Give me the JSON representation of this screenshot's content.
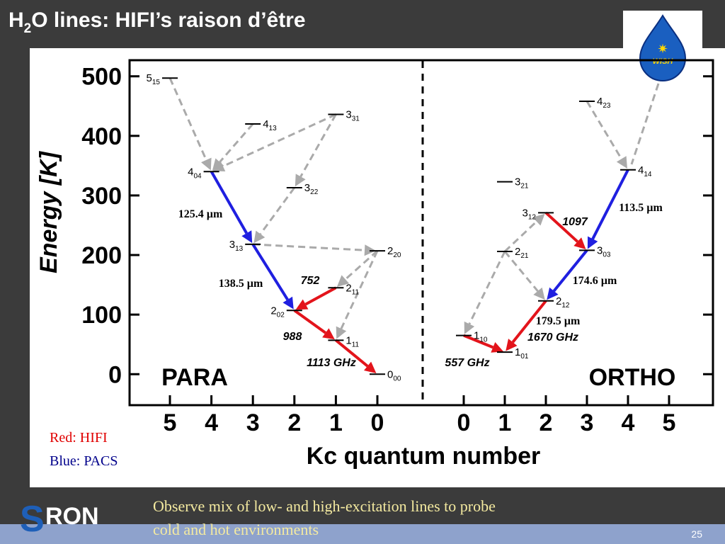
{
  "slide": {
    "title": {
      "parts": [
        "H",
        "2",
        "O lines: HIFI’s raison d’être"
      ]
    },
    "logo": "WISH",
    "footer_logo": {
      "initial": "S",
      "rest": "RON"
    },
    "caption": [
      "Observe mix of low- and high-excitation lines to probe",
      "cold and hot environments"
    ],
    "page_number": "25",
    "legend": [
      "Red: HIFI",
      "Blue: PACS"
    ]
  },
  "figure": {
    "y_label": "Energy [K]",
    "x_label": "Kc quantum number",
    "ylim": [
      -52,
      527
    ],
    "yticks": [
      0,
      100,
      200,
      300,
      400,
      500
    ],
    "panels": [
      {
        "label": "PARA",
        "xticks": [
          5,
          4,
          3,
          2,
          1,
          0
        ],
        "levels": [
          {
            "name": "5",
            "sub": "15",
            "kc": 5,
            "energy": 497
          },
          {
            "name": "4",
            "sub": "13",
            "kc": 3,
            "energy": 420
          },
          {
            "name": "3",
            "sub": "31",
            "kc": 1,
            "energy": 436
          },
          {
            "name": "4",
            "sub": "04",
            "kc": 4,
            "energy": 340
          },
          {
            "name": "3",
            "sub": "22",
            "kc": 2,
            "energy": 313
          },
          {
            "name": "3",
            "sub": "13",
            "kc": 3,
            "energy": 218
          },
          {
            "name": "2",
            "sub": "20",
            "kc": 0,
            "energy": 207
          },
          {
            "name": "2",
            "sub": "11",
            "kc": 1,
            "energy": 145
          },
          {
            "name": "2",
            "sub": "02",
            "kc": 2,
            "energy": 107
          },
          {
            "name": "1",
            "sub": "11",
            "kc": 1,
            "energy": 57
          },
          {
            "name": "0",
            "sub": "00",
            "kc": 0,
            "energy": 0
          }
        ],
        "transitions": [
          {
            "from": 0,
            "to": 3,
            "color": "#aaaaaa",
            "line": "dashed"
          },
          {
            "from": 1,
            "to": 3,
            "color": "#aaaaaa",
            "line": "dashed"
          },
          {
            "from": 2,
            "to": 3,
            "color": "#aaaaaa",
            "line": "dashed"
          },
          {
            "from": 2,
            "to": 4,
            "color": "#aaaaaa",
            "line": "dashed"
          },
          {
            "from": 3,
            "to": 5,
            "color": "#1f1fe0",
            "line": "solid",
            "labels": [
              "125.4 µm"
            ]
          },
          {
            "from": 4,
            "to": 5,
            "color": "#aaaaaa",
            "line": "dashed"
          },
          {
            "from": 5,
            "to": 6,
            "color": "#aaaaaa",
            "line": "dashed"
          },
          {
            "from": 5,
            "to": 8,
            "color": "#1f1fe0",
            "line": "solid",
            "labels": [
              "138.5 µm"
            ]
          },
          {
            "from": 6,
            "to": 7,
            "color": "#aaaaaa",
            "line": "dashed"
          },
          {
            "from": 6,
            "to": 9,
            "color": "#aaaaaa",
            "line": "dashed"
          },
          {
            "from": 7,
            "to": 8,
            "color": "#e3141b",
            "line": "solid",
            "labels": [
              "752"
            ]
          },
          {
            "from": 8,
            "to": 9,
            "color": "#e3141b",
            "line": "solid",
            "labels": [
              "988"
            ]
          },
          {
            "from": 9,
            "to": 10,
            "color": "#e3141b",
            "line": "solid",
            "labels": [
              "1113 GHz"
            ]
          }
        ]
      },
      {
        "label": "ORTHO",
        "xticks": [
          0,
          1,
          2,
          3,
          4,
          5
        ],
        "levels": [
          {
            "name": "4",
            "sub": "23",
            "kc": 3,
            "energy": 458
          },
          {
            "name": "4",
            "sub": "14",
            "kc": 4,
            "energy": 343
          },
          {
            "name": "3",
            "sub": "21",
            "kc": 1,
            "energy": 323
          },
          {
            "name": "3",
            "sub": "12",
            "kc": 2,
            "energy": 271
          },
          {
            "name": "3",
            "sub": "03",
            "kc": 3,
            "energy": 208
          },
          {
            "name": "2",
            "sub": "21",
            "kc": 1,
            "energy": 206
          },
          {
            "name": "2",
            "sub": "12",
            "kc": 2,
            "energy": 123
          },
          {
            "name": "1",
            "sub": "10",
            "kc": 0,
            "energy": 65
          },
          {
            "name": "1",
            "sub": "01",
            "kc": 1,
            "energy": 37
          }
        ],
        "transitions": [
          {
            "from": 0,
            "to": 1,
            "color": "#aaaaaa",
            "line": "dashed"
          },
          {
            "from": 1,
            "to": 4,
            "color": "#1f1fe0",
            "line": "solid",
            "labels": [
              "113.5 µm"
            ]
          },
          {
            "from": 3,
            "to": 4,
            "color": "#e3141b",
            "line": "solid",
            "labels": [
              "1097"
            ]
          },
          {
            "from": 5,
            "to": 3,
            "color": "#aaaaaa",
            "line": "dashed"
          },
          {
            "from": 5,
            "to": 6,
            "color": "#aaaaaa",
            "line": "dashed"
          },
          {
            "from": 5,
            "to": 7,
            "color": "#aaaaaa",
            "line": "dashed"
          },
          {
            "from": 4,
            "to": 6,
            "color": "#1f1fe0",
            "line": "solid",
            "labels": [
              "174.6 µm"
            ]
          },
          {
            "from": 6,
            "to": 8,
            "color": "#e3141b",
            "line": "solid",
            "labels": [
              "179.5 µm",
              "1670 GHz"
            ]
          },
          {
            "from": 7,
            "to": 8,
            "color": "#e3141b",
            "line": "solid",
            "labels": [
              "557 GHz"
            ]
          }
        ]
      }
    ]
  }
}
